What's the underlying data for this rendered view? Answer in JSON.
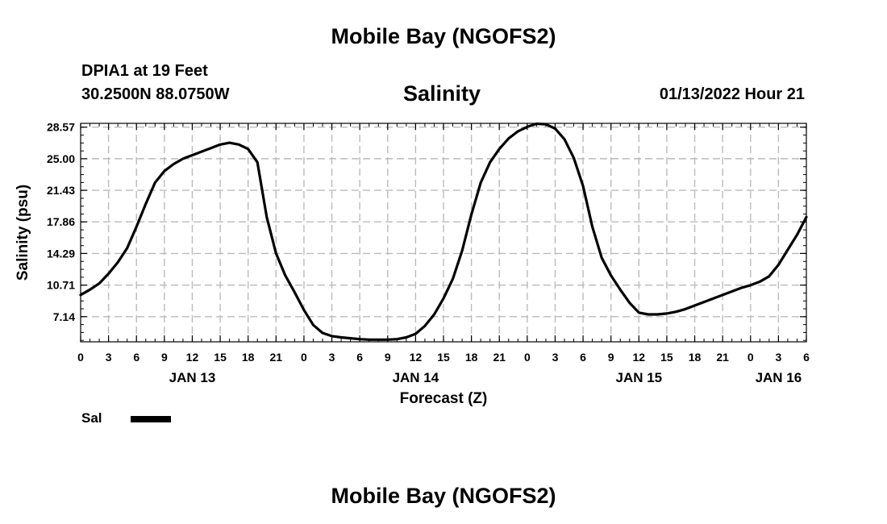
{
  "header": {
    "title": "Mobile Bay (NGOFS2)",
    "station": "DPIA1 at 19 Feet",
    "coordinates": "30.2500N  88.0750W",
    "chart_title": "Salinity",
    "datetime": "01/13/2022 Hour 21"
  },
  "footer": {
    "title": "Mobile Bay (NGOFS2)"
  },
  "legend": {
    "label": "Sal",
    "color": "#000000"
  },
  "chart_data": {
    "type": "line",
    "title": "Salinity",
    "xlabel": "Forecast (Z)",
    "ylabel": "Salinity (psu)",
    "x_unit": "hours from JAN 13 00Z",
    "xlim": [
      0,
      78
    ],
    "ylim": [
      4.3,
      29.0
    ],
    "grid": true,
    "legend_position": "bottom-left",
    "x_ticks": [
      0,
      3,
      6,
      9,
      12,
      15,
      18,
      21,
      24,
      27,
      30,
      33,
      36,
      39,
      42,
      45,
      48,
      51,
      54,
      57,
      60,
      63,
      66,
      69,
      72,
      75,
      78
    ],
    "x_tick_labels": [
      "0",
      "3",
      "6",
      "9",
      "12",
      "15",
      "18",
      "21",
      "0",
      "3",
      "6",
      "9",
      "12",
      "15",
      "18",
      "21",
      "0",
      "3",
      "6",
      "9",
      "12",
      "15",
      "18",
      "21",
      "0",
      "3",
      "6"
    ],
    "date_labels": [
      {
        "x": 12,
        "label": "JAN 13"
      },
      {
        "x": 36,
        "label": "JAN 14"
      },
      {
        "x": 60,
        "label": "JAN 15"
      },
      {
        "x": 75,
        "label": "JAN 16"
      }
    ],
    "y_ticks": [
      7.14,
      10.71,
      14.29,
      17.86,
      21.43,
      25.0,
      28.57
    ],
    "y_tick_labels": [
      "7.14",
      "10.71",
      "14.29",
      "17.86",
      "21.43",
      "25.00",
      "28.57"
    ],
    "series": [
      {
        "name": "Sal",
        "color": "#000000",
        "x": [
          0,
          1,
          2,
          3,
          4,
          5,
          6,
          7,
          8,
          9,
          10,
          11,
          12,
          13,
          14,
          15,
          16,
          17,
          18,
          19,
          20,
          21,
          22,
          23,
          24,
          25,
          26,
          27,
          28,
          29,
          30,
          31,
          32,
          33,
          34,
          35,
          36,
          37,
          38,
          39,
          40,
          41,
          42,
          43,
          44,
          45,
          46,
          47,
          48,
          49,
          50,
          51,
          52,
          53,
          54,
          55,
          56,
          57,
          58,
          59,
          60,
          61,
          62,
          63,
          64,
          65,
          66,
          67,
          68,
          69,
          70,
          71,
          72,
          73,
          74,
          75,
          76,
          77,
          78
        ],
        "y": [
          9.6,
          10.2,
          10.9,
          12.0,
          13.3,
          14.9,
          17.3,
          19.9,
          22.3,
          23.6,
          24.4,
          25.0,
          25.4,
          25.8,
          26.2,
          26.6,
          26.8,
          26.6,
          26.1,
          24.6,
          18.4,
          14.3,
          11.8,
          9.9,
          7.9,
          6.2,
          5.3,
          4.95,
          4.8,
          4.7,
          4.6,
          4.55,
          4.55,
          4.55,
          4.6,
          4.8,
          5.2,
          6.1,
          7.4,
          9.2,
          11.4,
          14.6,
          18.7,
          22.3,
          24.6,
          26.1,
          27.3,
          28.1,
          28.6,
          28.95,
          28.9,
          28.4,
          27.2,
          25.1,
          21.9,
          17.3,
          13.8,
          11.8,
          10.2,
          8.7,
          7.6,
          7.4,
          7.4,
          7.5,
          7.7,
          8.0,
          8.4,
          8.8,
          9.2,
          9.6,
          10.0,
          10.4,
          10.7,
          11.1,
          11.7,
          13.0,
          14.7,
          16.4,
          18.4
        ]
      }
    ]
  }
}
